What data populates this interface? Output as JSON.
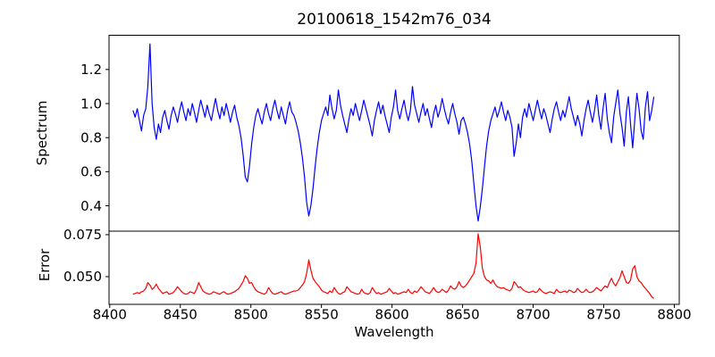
{
  "chart_data": {
    "type": "line",
    "title": "20100618_1542m76_034",
    "xlabel": "Wavelength",
    "x_ticks": [
      8400,
      8450,
      8500,
      8550,
      8600,
      8650,
      8700,
      8750,
      8800
    ],
    "x_tick_labels": [
      "8400",
      "8450",
      "8500",
      "8550",
      "8600",
      "8650",
      "8700",
      "8750",
      "8800"
    ],
    "xlim": [
      8399.5,
      8803.5
    ],
    "x_start": 8416.5,
    "x_step": 1.5,
    "grid": false,
    "legend": "none",
    "panels": [
      {
        "name": "spectrum",
        "ylabel": "Spectrum",
        "color": "#0000ff",
        "ylim": [
          0.251,
          1.401
        ],
        "y_ticks": [
          0.4,
          0.6,
          0.8,
          1.0,
          1.2
        ],
        "y_tick_labels": [
          "0.4",
          "0.6",
          "0.8",
          "1.0",
          "1.2"
        ],
        "features": "Ca II triplet absorption lines near 8498, 8542, 8662; emission-like spike to 1.35 near 8429",
        "values": [
          0.96,
          0.92,
          0.97,
          0.9,
          0.84,
          0.93,
          0.97,
          1.1,
          1.35,
          1.0,
          0.86,
          0.79,
          0.88,
          0.83,
          0.92,
          0.96,
          0.9,
          0.85,
          0.93,
          0.98,
          0.94,
          0.89,
          0.96,
          1.01,
          0.95,
          0.9,
          0.97,
          0.93,
          1.0,
          0.95,
          0.89,
          0.96,
          1.02,
          0.97,
          0.92,
          0.99,
          0.94,
          0.9,
          0.97,
          1.03,
          0.96,
          0.91,
          0.98,
          0.93,
          1.0,
          0.95,
          0.89,
          0.95,
          0.99,
          0.92,
          0.87,
          0.8,
          0.7,
          0.57,
          0.54,
          0.63,
          0.76,
          0.86,
          0.93,
          0.97,
          0.92,
          0.88,
          0.95,
          1.0,
          0.94,
          0.9,
          0.97,
          1.02,
          0.96,
          0.91,
          0.98,
          0.93,
          0.88,
          0.96,
          1.01,
          0.95,
          0.93,
          0.89,
          0.84,
          0.77,
          0.68,
          0.57,
          0.42,
          0.34,
          0.4,
          0.5,
          0.63,
          0.74,
          0.83,
          0.9,
          0.94,
          0.98,
          0.93,
          1.05,
          0.97,
          0.91,
          0.96,
          1.08,
          0.99,
          0.93,
          0.88,
          0.83,
          0.91,
          0.97,
          0.93,
          1.0,
          0.95,
          0.9,
          0.96,
          1.02,
          0.97,
          0.92,
          0.87,
          0.81,
          0.9,
          0.96,
          1.01,
          0.94,
          0.99,
          0.93,
          0.88,
          0.83,
          0.92,
          0.98,
          1.08,
          0.96,
          0.91,
          0.97,
          1.02,
          0.95,
          0.9,
          0.96,
          1.1,
          0.99,
          0.94,
          0.89,
          0.95,
          1.0,
          0.93,
          0.97,
          0.91,
          0.86,
          0.94,
          0.99,
          0.92,
          0.96,
          1.03,
          0.97,
          0.92,
          0.88,
          0.95,
          1.0,
          0.94,
          0.89,
          0.82,
          0.9,
          0.92,
          0.88,
          0.83,
          0.76,
          0.66,
          0.53,
          0.4,
          0.31,
          0.39,
          0.5,
          0.63,
          0.75,
          0.84,
          0.9,
          0.94,
          0.98,
          0.92,
          0.96,
          1.01,
          0.95,
          0.9,
          0.96,
          0.92,
          0.86,
          0.69,
          0.77,
          0.88,
          0.8,
          0.92,
          0.97,
          0.92,
          1.0,
          0.95,
          0.9,
          0.96,
          1.02,
          0.96,
          0.91,
          0.97,
          0.93,
          0.88,
          0.83,
          0.91,
          0.97,
          1.01,
          0.95,
          0.9,
          0.96,
          0.92,
          0.98,
          1.04,
          0.97,
          0.92,
          0.87,
          0.93,
          0.88,
          0.81,
          0.9,
          0.97,
          1.02,
          0.95,
          0.89,
          0.96,
          1.05,
          0.93,
          0.85,
          0.97,
          1.06,
          0.91,
          0.83,
          0.77,
          0.92,
          1.0,
          1.08,
          0.94,
          0.86,
          0.75,
          0.95,
          1.04,
          0.88,
          0.74,
          0.91,
          1.06,
          0.97,
          0.84,
          0.79,
          0.98,
          1.07,
          0.9,
          0.96,
          1.04
        ]
      },
      {
        "name": "error",
        "ylabel": "Error",
        "color": "#ff0000",
        "ylim": [
          0.0335,
          0.0771
        ],
        "y_ticks": [
          0.05,
          0.075
        ],
        "y_tick_labels": [
          "0.050",
          "0.075"
        ],
        "features": "error peaks at the Ca II lines: ~0.050 near 8498, ~0.060 near 8542, ~0.0755 near 8662; bumps ~0.054-0.057 near 8765-8775",
        "values": [
          0.0395,
          0.04,
          0.0405,
          0.04,
          0.041,
          0.0415,
          0.043,
          0.0465,
          0.045,
          0.0425,
          0.0435,
          0.0455,
          0.043,
          0.0415,
          0.04,
          0.0405,
          0.041,
          0.0395,
          0.04,
          0.0405,
          0.042,
          0.044,
          0.0425,
          0.041,
          0.04,
          0.0395,
          0.04,
          0.041,
          0.0405,
          0.04,
          0.0425,
          0.0465,
          0.044,
          0.0415,
          0.0405,
          0.04,
          0.0395,
          0.04,
          0.041,
          0.0405,
          0.04,
          0.0395,
          0.0405,
          0.041,
          0.04,
          0.0395,
          0.04,
          0.0405,
          0.041,
          0.042,
          0.043,
          0.045,
          0.047,
          0.0505,
          0.049,
          0.046,
          0.0465,
          0.044,
          0.042,
          0.041,
          0.0405,
          0.04,
          0.0395,
          0.0405,
          0.0435,
          0.0415,
          0.04,
          0.0395,
          0.04,
          0.0405,
          0.041,
          0.04,
          0.0395,
          0.04,
          0.0405,
          0.041,
          0.0415,
          0.0415,
          0.042,
          0.0435,
          0.045,
          0.047,
          0.052,
          0.06,
          0.054,
          0.049,
          0.047,
          0.0455,
          0.044,
          0.042,
          0.041,
          0.0405,
          0.04,
          0.0415,
          0.0405,
          0.0435,
          0.0415,
          0.04,
          0.0395,
          0.0405,
          0.041,
          0.044,
          0.0425,
          0.041,
          0.0405,
          0.04,
          0.0395,
          0.04,
          0.0425,
          0.0405,
          0.04,
          0.0395,
          0.0405,
          0.0435,
          0.0415,
          0.04,
          0.0405,
          0.0395,
          0.04,
          0.0405,
          0.041,
          0.043,
          0.0415,
          0.04,
          0.0405,
          0.0395,
          0.04,
          0.0405,
          0.041,
          0.0405,
          0.0425,
          0.0405,
          0.04,
          0.0415,
          0.0405,
          0.042,
          0.044,
          0.0425,
          0.041,
          0.0405,
          0.04,
          0.0415,
          0.0435,
          0.0415,
          0.0405,
          0.041,
          0.0425,
          0.0415,
          0.0405,
          0.042,
          0.0445,
          0.043,
          0.0425,
          0.044,
          0.047,
          0.0445,
          0.0435,
          0.0445,
          0.046,
          0.048,
          0.05,
          0.052,
          0.058,
          0.0755,
          0.068,
          0.055,
          0.05,
          0.048,
          0.0475,
          0.046,
          0.048,
          0.0455,
          0.044,
          0.0435,
          0.043,
          0.0435,
          0.0425,
          0.042,
          0.0415,
          0.043,
          0.047,
          0.0455,
          0.0435,
          0.044,
          0.0425,
          0.0415,
          0.041,
          0.0405,
          0.041,
          0.0415,
          0.0405,
          0.041,
          0.043,
          0.0415,
          0.0405,
          0.04,
          0.0405,
          0.041,
          0.0405,
          0.04,
          0.0425,
          0.041,
          0.0405,
          0.041,
          0.0415,
          0.0405,
          0.042,
          0.0415,
          0.0405,
          0.041,
          0.043,
          0.0415,
          0.0405,
          0.041,
          0.0425,
          0.041,
          0.0405,
          0.041,
          0.042,
          0.0435,
          0.0425,
          0.0415,
          0.043,
          0.0445,
          0.0435,
          0.0465,
          0.049,
          0.046,
          0.0445,
          0.047,
          0.0495,
          0.0535,
          0.05,
          0.0465,
          0.046,
          0.048,
          0.0545,
          0.0565,
          0.05,
          0.0475,
          0.0465,
          0.0445,
          0.043,
          0.0415,
          0.04,
          0.038,
          0.037
        ]
      }
    ],
    "colors": {
      "spectrum_line": "#0000ff",
      "error_line": "#ff0000",
      "axes": "#000000",
      "background": "#ffffff"
    }
  }
}
